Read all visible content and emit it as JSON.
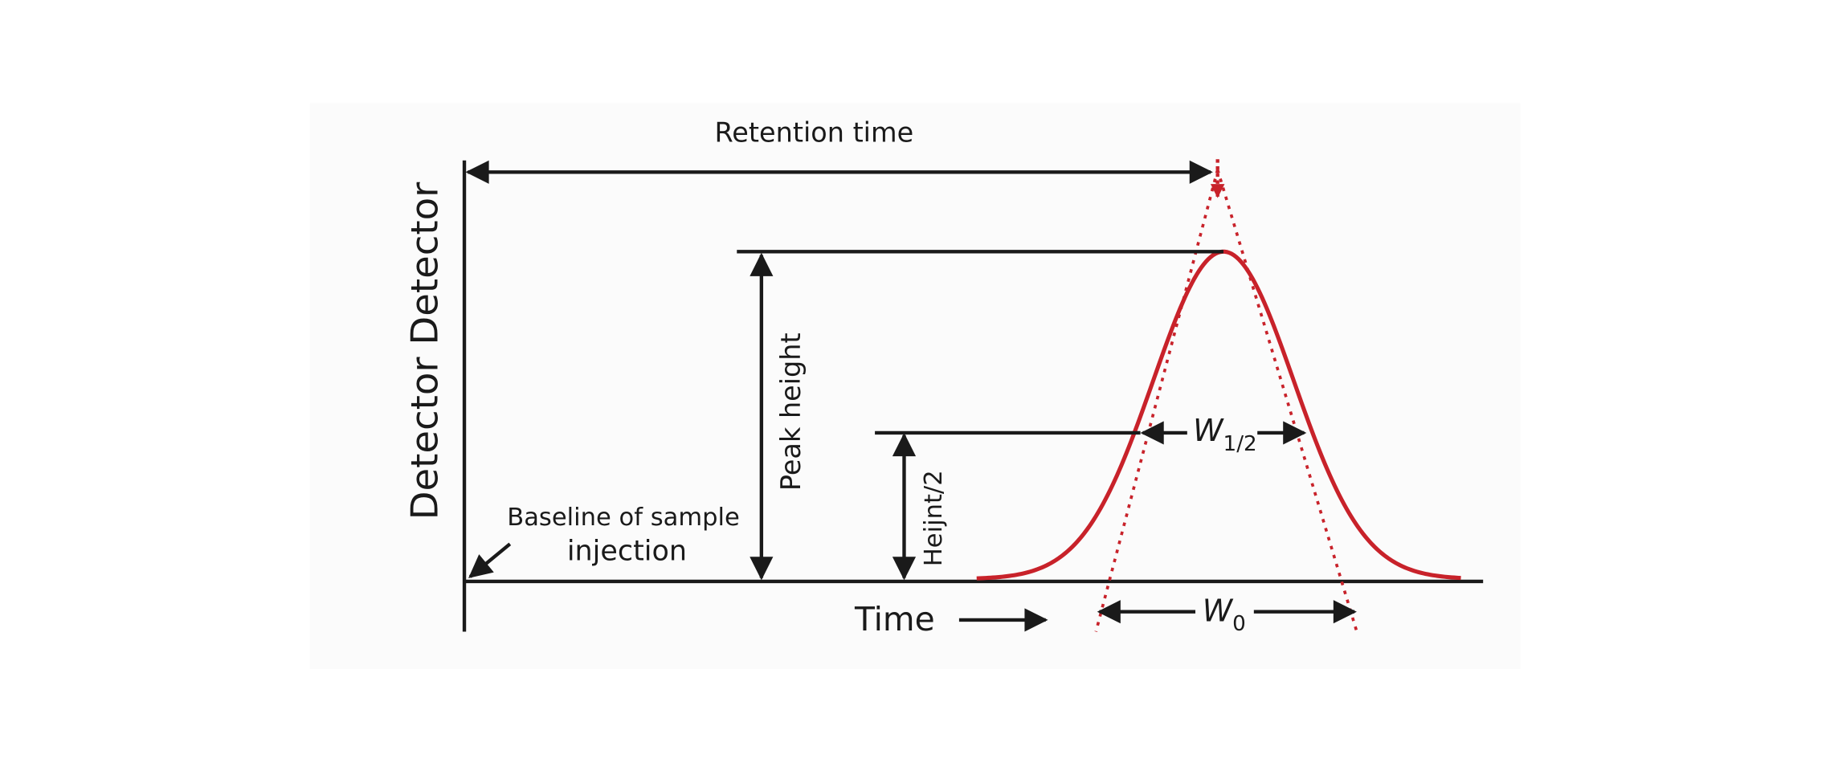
{
  "title": "Retention time",
  "y_axis_label": "Detector Detector",
  "x_axis_label": "Time",
  "labels": {
    "peak_height": "Peak height",
    "half_height": "Heijnt/2",
    "baseline": [
      "Baseline of sample",
      "injection"
    ],
    "w_half": {
      "main": "W",
      "sub": "1/2"
    },
    "w_zero": {
      "main": "W",
      "sub": "0"
    }
  }
}
